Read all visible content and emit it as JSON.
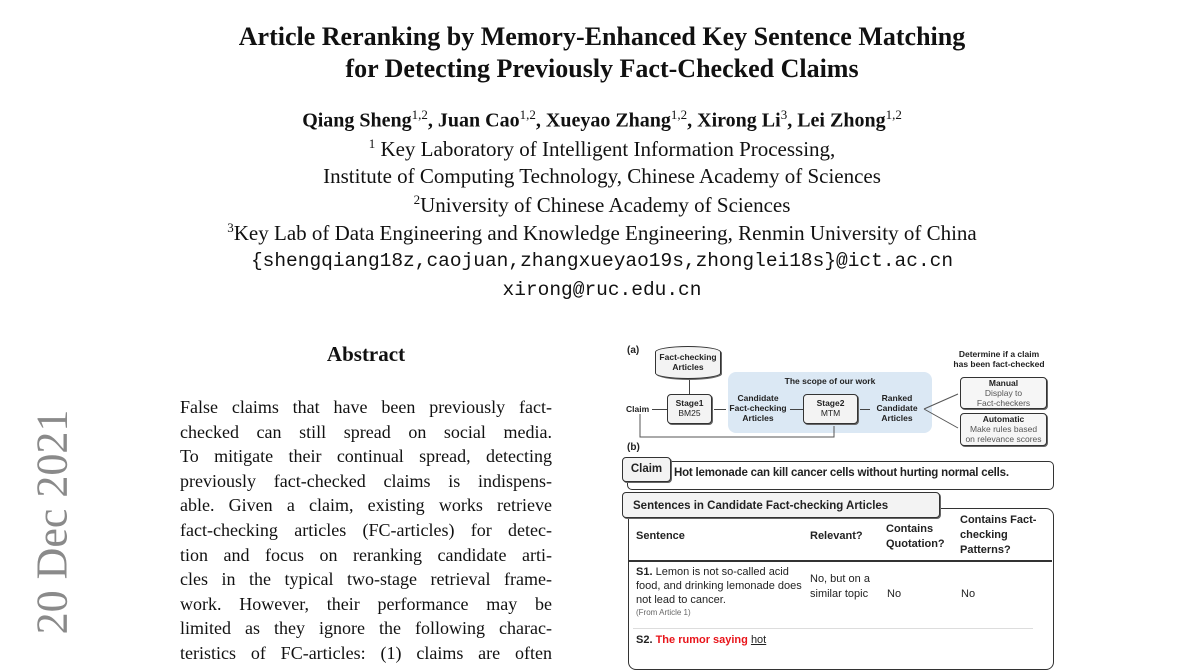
{
  "paper": {
    "title_lines": [
      "Article Reranking by Memory-Enhanced Key Sentence Matching",
      "for Detecting Previously Fact-Checked Claims"
    ],
    "authors": [
      {
        "name": "Qiang Sheng",
        "aff": "1,2"
      },
      {
        "name": "Juan Cao",
        "aff": "1,2"
      },
      {
        "name": "Xueyao Zhang",
        "aff": "1,2"
      },
      {
        "name": "Xirong Li",
        "aff": "3"
      },
      {
        "name": "Lei Zhong",
        "aff": "1,2"
      }
    ],
    "affiliations": [
      {
        "mark": "1",
        "text": " Key Laboratory of Intelligent Information Processing,"
      },
      {
        "mark": "",
        "text": "Institute of Computing Technology, Chinese Academy of Sciences"
      },
      {
        "mark": "2",
        "text": "University of Chinese Academy of Sciences"
      },
      {
        "mark": "3",
        "text": "Key Lab of Data Engineering and Knowledge Engineering, Renmin University of China"
      }
    ],
    "emails": [
      "{shengqiang18z,caojuan,zhangxueyao19s,zhonglei18s}@ict.ac.cn",
      "xirong@ruc.edu.cn"
    ],
    "arxiv_date": "20 Dec 2021",
    "abstract_heading": "Abstract",
    "abstract_lines": [
      "False claims that have been previously fact-",
      "checked can still spread on social media.",
      "To mitigate their continual spread, detecting",
      "previously fact-checked claims is indispens-",
      "able. Given a claim, existing works retrieve",
      "fact-checking articles (FC-articles) for detec-",
      "tion and focus on reranking candidate arti-",
      "cles in the typical two-stage retrieval frame-",
      "work. However, their performance may be",
      "limited as they ignore the following charac-",
      "teristics of FC-articles: (1) claims are often"
    ]
  },
  "figure": {
    "panel_a": "(a)",
    "panel_b": "(b)",
    "database": [
      "Fact-checking",
      "Articles"
    ],
    "claim": "Claim",
    "stage1": {
      "title": "Stage1",
      "sub": "BM25"
    },
    "scope": "The scope of our work",
    "candidate": [
      "Candidate",
      "Fact-checking",
      "Articles"
    ],
    "stage2": {
      "title": "Stage2",
      "sub": "MTM"
    },
    "ranked": [
      "Ranked",
      "Candidate",
      "Articles"
    ],
    "determine": [
      "Determine if a claim",
      "has been fact-checked"
    ],
    "manual": {
      "title": "Manual",
      "sub": [
        "Display to",
        "Fact-checkers"
      ]
    },
    "automatic": {
      "title": "Automatic",
      "sub": [
        "Make rules based",
        "on relevance scores"
      ]
    },
    "claim_tab": "Claim",
    "claim_text": "Hot lemonade can kill cancer cells without hurting normal cells.",
    "sentences_tab": "Sentences in Candidate Fact-checking Articles",
    "columns": [
      "Sentence",
      "Relevant?",
      "Contains Quotation?",
      "Contains Fact-checking Patterns?"
    ],
    "rows": [
      {
        "id": "S1.",
        "text": "Lemon is not so-called acid food, and drinking lemonade does not lead to cancer.",
        "source": "(From Article 1)",
        "relevant": "No, but on a similar topic",
        "quotation": "No",
        "patterns": "No"
      },
      {
        "id": "S2.",
        "text_red": "The rumor saying",
        "text_under": "hot"
      }
    ],
    "colors": {
      "scope_bg": "#dbe8f4",
      "highlight_red": "#e8141a",
      "date_gray": "#8a8a8a"
    }
  }
}
